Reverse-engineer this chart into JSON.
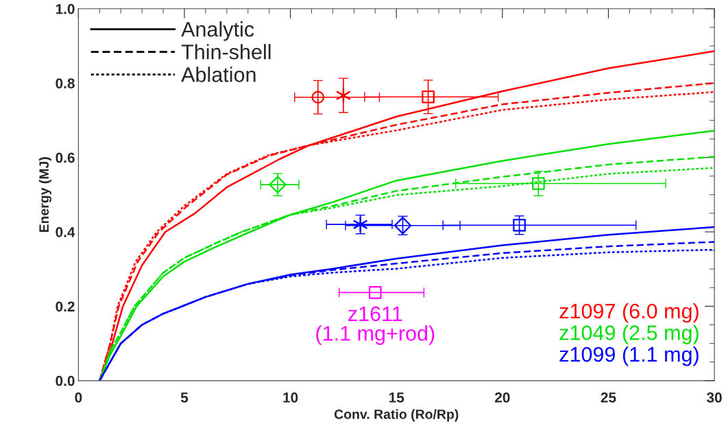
{
  "chart_data": {
    "type": "line",
    "xlabel": "Conv. Ratio (Ro/Rp)",
    "ylabel": "Energy (MJ)",
    "xlim": [
      0,
      30
    ],
    "xticks": [
      0,
      5,
      10,
      15,
      20,
      25,
      30
    ],
    "ylim": [
      0,
      1.0
    ],
    "yticks": [
      {
        "value": 0,
        "label": "0.0"
      },
      0.2,
      0.4,
      0.6,
      0.8,
      {
        "value": 1.0,
        "label": "1.0"
      }
    ],
    "grid": false,
    "legend": "bottom right",
    "annotations": [
      "Analytic",
      "Thin-shell",
      "Ablation"
    ],
    "series": [
      {
        "line_style": "solid",
        "color": "#ff0000",
        "x": [
          1,
          1.5,
          2.1,
          3,
          4.1,
          5.5,
          7,
          9.5,
          10.9,
          15,
          20,
          25,
          30
        ],
        "values": [
          0,
          0.08,
          0.2,
          0.31,
          0.4,
          0.45,
          0.52,
          0.596,
          0.633,
          0.71,
          0.778,
          0.84,
          0.886
        ]
      },
      {
        "line_style": "dashed",
        "color": "#ff0000",
        "x": [
          1,
          1.5,
          1.9,
          2.8,
          3.8,
          5.1,
          7,
          9,
          10.9,
          15,
          20,
          25,
          30
        ],
        "values": [
          0,
          0.1,
          0.2,
          0.32,
          0.4,
          0.468,
          0.554,
          0.605,
          0.633,
          0.688,
          0.743,
          0.774,
          0.8
        ]
      },
      {
        "line_style": "dotted",
        "color": "#ff0000",
        "x": [
          1,
          1.5,
          1.85,
          2.7,
          3.7,
          5,
          7,
          9,
          10.9,
          15,
          20,
          25,
          30
        ],
        "values": [
          0,
          0.1,
          0.2,
          0.32,
          0.4,
          0.47,
          0.556,
          0.607,
          0.633,
          0.673,
          0.728,
          0.756,
          0.776
        ]
      },
      {
        "line_style": "solid",
        "color": "#00e000",
        "x": [
          1,
          1.5,
          2,
          2.75,
          4,
          5,
          6.5,
          8.1,
          10,
          12,
          15,
          20,
          25,
          30
        ],
        "values": [
          0,
          0.07,
          0.12,
          0.2,
          0.28,
          0.32,
          0.36,
          0.4,
          0.446,
          0.48,
          0.538,
          0.591,
          0.636,
          0.672
        ]
      },
      {
        "line_style": "dashed",
        "color": "#00e000",
        "x": [
          1,
          1.5,
          2,
          2.65,
          4,
          5,
          6.5,
          7.7,
          10,
          12,
          15,
          20,
          25,
          30
        ],
        "values": [
          0,
          0.08,
          0.13,
          0.2,
          0.29,
          0.33,
          0.37,
          0.4,
          0.446,
          0.47,
          0.51,
          0.548,
          0.581,
          0.602
        ]
      },
      {
        "line_style": "dotted",
        "color": "#00e000",
        "x": [
          1,
          1.5,
          2,
          2.65,
          4,
          5,
          6.5,
          7.7,
          10,
          12,
          15,
          20,
          25,
          30
        ],
        "values": [
          0,
          0.08,
          0.13,
          0.2,
          0.29,
          0.33,
          0.37,
          0.4,
          0.446,
          0.465,
          0.499,
          0.523,
          0.556,
          0.572
        ]
      },
      {
        "line_style": "solid",
        "color": "#0000ff",
        "x": [
          1,
          1.5,
          2,
          3,
          4,
          4.9,
          6,
          8,
          10,
          11.9,
          15,
          20,
          25,
          30
        ],
        "values": [
          0,
          0.05,
          0.1,
          0.15,
          0.18,
          0.2,
          0.225,
          0.26,
          0.285,
          0.3,
          0.328,
          0.364,
          0.392,
          0.413
        ]
      },
      {
        "line_style": "dashed",
        "color": "#0000ff",
        "x": [
          1,
          1.5,
          2,
          3,
          4,
          4.9,
          6,
          8,
          10,
          11.9,
          15,
          20,
          25,
          30
        ],
        "values": [
          0,
          0.05,
          0.1,
          0.15,
          0.18,
          0.2,
          0.225,
          0.26,
          0.283,
          0.297,
          0.315,
          0.343,
          0.361,
          0.373
        ]
      },
      {
        "line_style": "dotted",
        "color": "#0000ff",
        "x": [
          1,
          1.5,
          2,
          3,
          4,
          4.9,
          6,
          8,
          10,
          11.9,
          15,
          20,
          25,
          30
        ],
        "values": [
          0,
          0.05,
          0.1,
          0.15,
          0.18,
          0.2,
          0.225,
          0.26,
          0.28,
          0.29,
          0.301,
          0.33,
          0.345,
          0.352
        ]
      },
      {
        "name": "z1097 (6.0 mg)",
        "type": "scatter",
        "marker": "circle",
        "color": "#ff0000",
        "x": [
          11.3
        ],
        "values": [
          0.762
        ],
        "errors": [
          0.045
        ],
        "xerrors": [
          [
            10.2,
            14.2
          ]
        ]
      },
      {
        "type": "scatter",
        "marker": "cross",
        "color": "#ff0000",
        "x": [
          12.5
        ],
        "values": [
          0.767
        ],
        "errors": [
          0.046
        ],
        "xerrors": [
          null
        ]
      },
      {
        "type": "scatter",
        "marker": "square",
        "color": "#ff0000",
        "x": [
          16.5
        ],
        "values": [
          0.763
        ],
        "errors": [
          0.045
        ],
        "xerrors": [
          [
            13.5,
            19.8
          ]
        ]
      },
      {
        "name": "z1049 (2.5 mg)",
        "type": "scatter",
        "marker": "diamond",
        "color": "#00e000",
        "x": [
          9.4
        ],
        "values": [
          0.527
        ],
        "errors": [
          0.03
        ],
        "xerrors": [
          [
            8.6,
            10.4
          ]
        ]
      },
      {
        "type": "scatter",
        "marker": "square",
        "color": "#00e000",
        "x": [
          21.7
        ],
        "values": [
          0.53
        ],
        "errors": [
          0.033
        ],
        "xerrors": [
          [
            17.8,
            27.7
          ]
        ]
      },
      {
        "name": "z1099 (1.1 mg)",
        "type": "scatter",
        "marker": "cross",
        "color": "#0000ff",
        "x": [
          13.3
        ],
        "values": [
          0.42
        ],
        "errors": [
          0.025
        ],
        "xerrors": [
          [
            11.7,
            14.8
          ]
        ]
      },
      {
        "type": "scatter",
        "marker": "diamond",
        "color": "#0000ff",
        "x": [
          15.3
        ],
        "values": [
          0.417
        ],
        "errors": [
          0.025
        ],
        "xerrors": [
          [
            12.6,
            18.0
          ]
        ]
      },
      {
        "type": "scatter",
        "marker": "square",
        "color": "#0000ff",
        "x": [
          20.8
        ],
        "values": [
          0.418
        ],
        "errors": [
          0.025
        ],
        "xerrors": [
          [
            17.2,
            26.3
          ]
        ]
      },
      {
        "name": "z1611\n(1.1 mg+rod)",
        "type": "scatter",
        "marker": "square",
        "color": "#ff00ff",
        "x": [
          14.0
        ],
        "values": [
          0.237
        ],
        "errors": [
          null
        ],
        "xerrors": [
          [
            12.3,
            16.3
          ]
        ]
      }
    ]
  }
}
